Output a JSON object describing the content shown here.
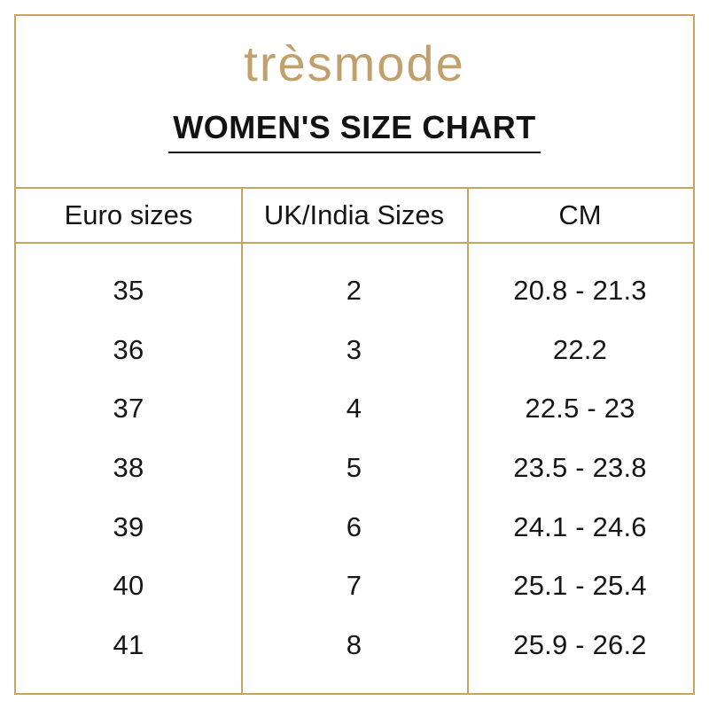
{
  "brand": {
    "logo_text": "trèsmode",
    "logo_color": "#C2A06B"
  },
  "title": "WOMEN'S SIZE CHART",
  "table": {
    "columns": [
      "Euro sizes",
      "UK/India Sizes",
      "CM"
    ],
    "rows": [
      [
        "35",
        "2",
        "20.8 - 21.3"
      ],
      [
        "36",
        "3",
        "22.2"
      ],
      [
        "37",
        "4",
        "22.5 - 23"
      ],
      [
        "38",
        "5",
        "23.5 - 23.8"
      ],
      [
        "39",
        "6",
        "24.1 - 24.6"
      ],
      [
        "40",
        "7",
        "25.1 - 25.4"
      ],
      [
        "41",
        "8",
        "25.9 - 26.2"
      ]
    ]
  },
  "chart_data": {
    "type": "table",
    "title": "WOMEN'S SIZE CHART",
    "columns": [
      "Euro sizes",
      "UK/India Sizes",
      "CM"
    ],
    "rows": [
      [
        "35",
        "2",
        "20.8 - 21.3"
      ],
      [
        "36",
        "3",
        "22.2"
      ],
      [
        "37",
        "4",
        "22.5 - 23"
      ],
      [
        "38",
        "5",
        "23.5 - 23.8"
      ],
      [
        "39",
        "6",
        "24.1 - 24.6"
      ],
      [
        "40",
        "7",
        "25.1 - 25.4"
      ],
      [
        "41",
        "8",
        "25.9 - 26.2"
      ]
    ]
  },
  "colors": {
    "border_gold": "#C9A45F",
    "logo_gold": "#C2A06B",
    "text": "#131313",
    "background": "#FFFFFF"
  }
}
